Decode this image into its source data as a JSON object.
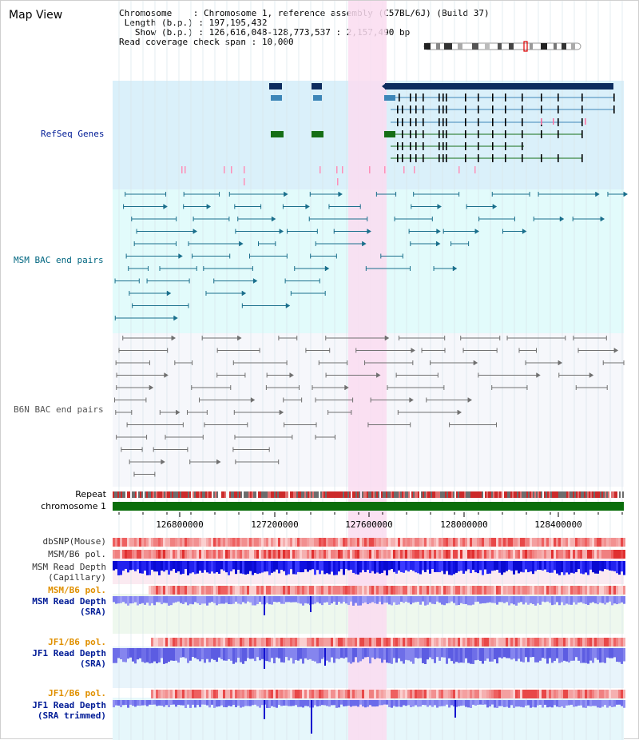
{
  "title": "Map View",
  "info": {
    "chromosome_label": "Chromosome",
    "chromosome_value": "Chromosome 1, reference assembly (C57BL/6J) (Build 37)",
    "length_label": "Length (b.p.)",
    "length_value": "197,195,432",
    "show_label": "Show (b.p.)",
    "show_value": "126,616,048-128,773,537 : 2,157,490 bp",
    "coverage_label": "Read coverage check span",
    "coverage_value": "10,000"
  },
  "tracks": {
    "refseq": "RefSeq Genes",
    "msm_bac": "MSM BAC end pairs",
    "b6n_bac": "B6N BAC end pairs",
    "repeat": "Repeat",
    "chromosome": "chromosome 1",
    "dbsnp": "dbSNP(Mouse)",
    "msm_b6_pol": "MSM/B6 pol.",
    "msm_depth_cap_1": "MSM Read Depth",
    "msm_depth_cap_2": "(Capillary)",
    "msm_b6_pol_sra": "MSM/B6 pol.",
    "msm_depth_sra_1": "MSM Read Depth",
    "msm_depth_sra_2": "(SRA)",
    "jf1_b6_pol": "JF1/B6 pol.",
    "jf1_depth_sra_1": "JF1 Read Depth",
    "jf1_depth_sra_2": "(SRA)",
    "jf1_b6_pol_trim": "JF1/B6 pol.",
    "jf1_depth_trim_1": "JF1 Read Depth",
    "jf1_depth_trim_2": "(SRA trimmed)"
  },
  "axis_ticks": [
    "126800000",
    "127200000",
    "127600000",
    "128000000",
    "128400000"
  ],
  "colors": {
    "refseq_bg": "#daf0fa",
    "msm_bg": "#e2fbfb",
    "highlight": "#fadcf0",
    "gene_dark": "#0d2c5e",
    "gene_mid": "#3d86b8",
    "gene_green": "#156e15",
    "bac_msm": "#1a6f8c",
    "bac_b6n": "#707070",
    "chrom_green": "#0b6e0b",
    "label_blue": "#001b96",
    "label_teal": "#006680",
    "label_orange": "#e09000"
  }
}
